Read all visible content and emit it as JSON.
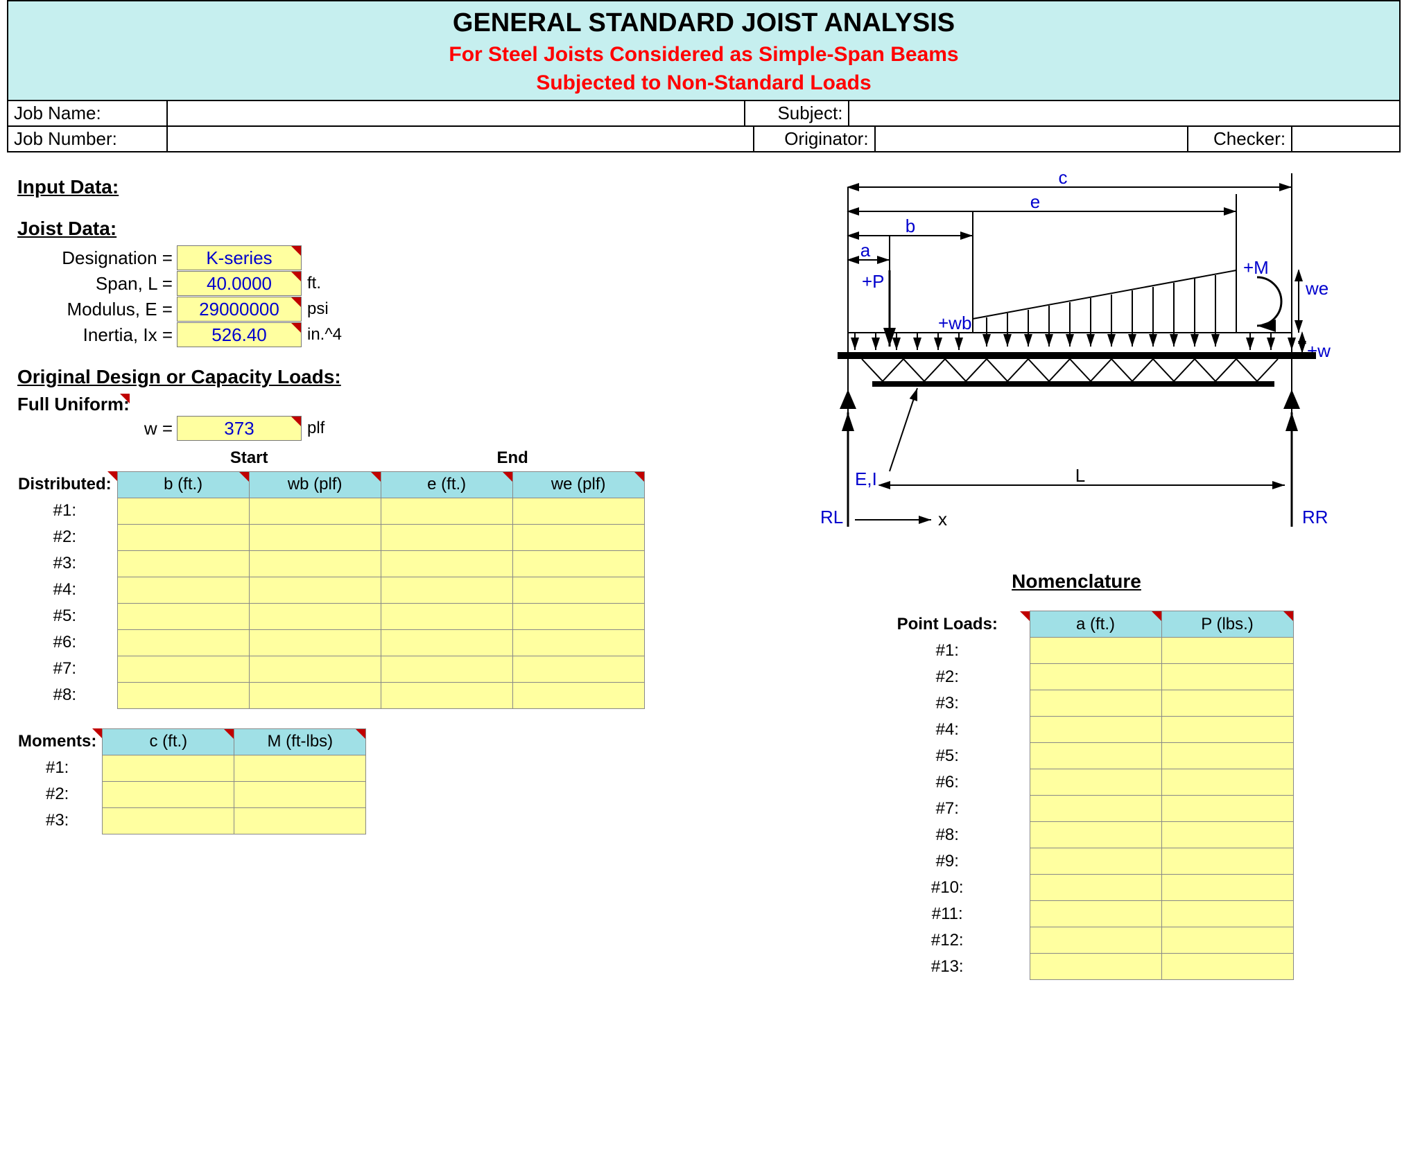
{
  "title": {
    "main": "GENERAL STANDARD JOIST ANALYSIS",
    "sub1": "For Steel Joists Considered as Simple-Span Beams",
    "sub2": "Subjected to Non-Standard Loads"
  },
  "job": {
    "name_label": "Job Name:",
    "name_value": "",
    "number_label": "Job Number:",
    "number_value": "",
    "subject_label": "Subject:",
    "subject_value": "",
    "originator_label": "Originator:",
    "originator_value": "",
    "checker_label": "Checker:",
    "checker_value": ""
  },
  "sections": {
    "input_data": "Input Data:",
    "joist_data": "Joist Data:",
    "orig_loads": "Original Design or Capacity Loads:",
    "full_uniform": "Full Uniform:"
  },
  "joist": {
    "designation_label": "Designation =",
    "designation_value": "K-series",
    "designation_unit": "",
    "span_label": "Span, L =",
    "span_value": "40.0000",
    "span_unit": "ft.",
    "modulus_label": "Modulus, E =",
    "modulus_value": "29000000",
    "modulus_unit": "psi",
    "inertia_label": "Inertia, Ix =",
    "inertia_value": "526.40",
    "inertia_unit": "in.^4"
  },
  "uniform": {
    "w_label": "w =",
    "w_value": "373",
    "w_unit": "plf"
  },
  "distributed": {
    "title": "Distributed:",
    "top_start": "Start",
    "top_end": "End",
    "cols": [
      "b (ft.)",
      "wb (plf)",
      "e (ft.)",
      "we (plf)"
    ],
    "rows": [
      "#1:",
      "#2:",
      "#3:",
      "#4:",
      "#5:",
      "#6:",
      "#7:",
      "#8:"
    ]
  },
  "moments": {
    "title": "Moments:",
    "cols": [
      "c (ft.)",
      "M (ft-lbs)"
    ],
    "rows": [
      "#1:",
      "#2:",
      "#3:"
    ]
  },
  "point_loads": {
    "title": "Point Loads:",
    "cols": [
      "a (ft.)",
      "P (lbs.)"
    ],
    "rows": [
      "#1:",
      "#2:",
      "#3:",
      "#4:",
      "#5:",
      "#6:",
      "#7:",
      "#8:",
      "#9:",
      "#10:",
      "#11:",
      "#12:",
      "#13:"
    ]
  },
  "diagram": {
    "caption": "Nomenclature",
    "labels": {
      "c": "c",
      "e": "e",
      "b": "b",
      "a": "a",
      "P": "+P",
      "wb": "+wb",
      "M": "+M",
      "we": "we",
      "w": "+w",
      "EI": "E,I",
      "L": "L",
      "RL": "RL",
      "RR": "RR",
      "x": "x"
    },
    "colors": {
      "text": "#0000cd",
      "line": "#000000"
    }
  }
}
